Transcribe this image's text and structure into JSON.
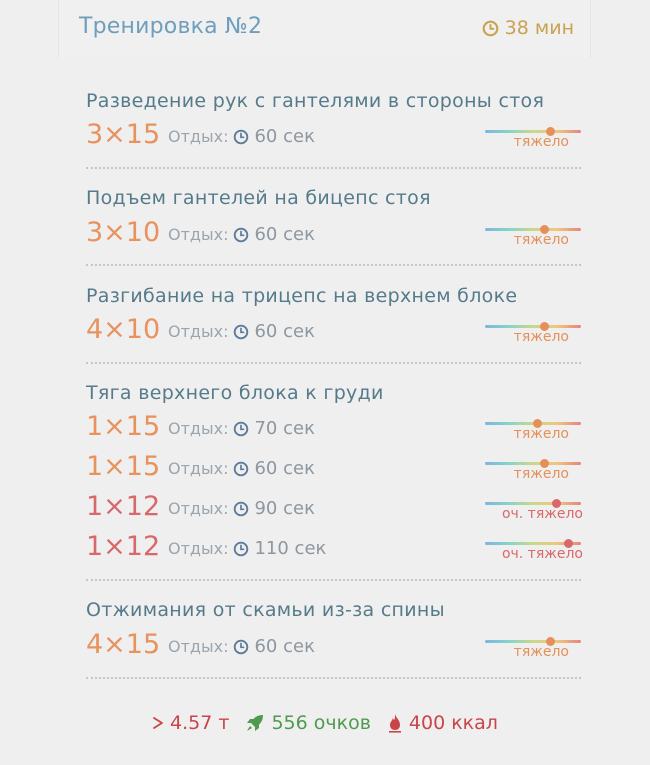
{
  "header": {
    "title": "Тренировка №2",
    "duration": "38 мин"
  },
  "rest_label": "Отдых:",
  "exercises": [
    {
      "name": "Разведение рук с гантелями в стороны стоя",
      "sets": [
        {
          "reps": "3×15",
          "rest": "60 сек",
          "level": "тяжело",
          "intensity": 0.68
        }
      ]
    },
    {
      "name": "Подъем гантелей на бицепс стоя",
      "sets": [
        {
          "reps": "3×10",
          "rest": "60 сек",
          "level": "тяжело",
          "intensity": 0.62
        }
      ]
    },
    {
      "name": "Разгибание на трицепс на верхнем блоке",
      "sets": [
        {
          "reps": "4×10",
          "rest": "60 сек",
          "level": "тяжело",
          "intensity": 0.62
        }
      ]
    },
    {
      "name": "Тяга верхнего блока к груди",
      "sets": [
        {
          "reps": "1×15",
          "rest": "70 сек",
          "level": "тяжело",
          "intensity": 0.55
        },
        {
          "reps": "1×15",
          "rest": "60 сек",
          "level": "тяжело",
          "intensity": 0.62
        },
        {
          "reps": "1×12",
          "rest": "90 сек",
          "level": "оч. тяжело",
          "intensity": 0.74
        },
        {
          "reps": "1×12",
          "rest": "110 сек",
          "level": "оч. тяжело",
          "intensity": 0.87
        }
      ]
    },
    {
      "name": "Отжимания от скамьи из-за спины",
      "sets": [
        {
          "reps": "4×15",
          "rest": "60 сек",
          "level": "тяжело",
          "intensity": 0.68
        }
      ]
    }
  ],
  "footer": {
    "weight": "4.57 т",
    "points": "556 очков",
    "kcal": "400 ккал"
  },
  "colors": {
    "hard": "#e8925d",
    "very_hard": "#d9686a",
    "title": "#557b8a",
    "header_title": "#6f9ebc",
    "duration": "#c9a252"
  },
  "icons": {
    "duration": "clock-icon",
    "rest": "clock-icon",
    "weight": "chevron-right-icon",
    "points": "rocket-icon",
    "kcal": "flame-icon"
  }
}
